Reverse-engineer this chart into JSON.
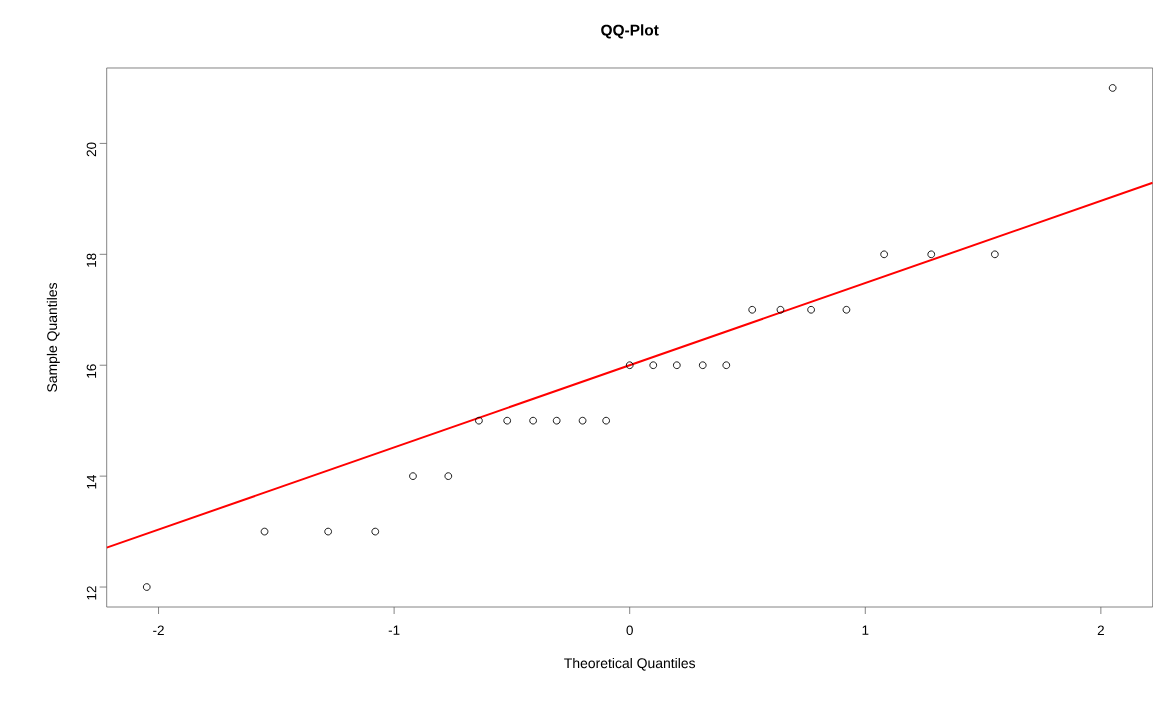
{
  "chart_data": {
    "type": "scatter",
    "title": "QQ-Plot",
    "xlabel": "Theoretical Quantiles",
    "ylabel": "Sample Quantiles",
    "x": [
      -2.05,
      -1.55,
      -1.28,
      -1.08,
      -0.92,
      -0.77,
      -0.64,
      -0.52,
      -0.41,
      -0.31,
      -0.2,
      -0.1,
      0,
      0.1,
      0.2,
      0.31,
      0.41,
      0.52,
      0.64,
      0.77,
      0.92,
      1.08,
      1.28,
      1.55,
      2.05
    ],
    "series": [
      {
        "marker": "circle",
        "color": "#000000",
        "values": [
          12,
          13,
          13,
          13,
          14,
          14,
          15,
          15,
          15,
          15,
          15,
          15,
          16,
          16,
          16,
          16,
          16,
          17,
          17,
          17,
          17,
          18,
          18,
          18,
          21
        ]
      },
      {
        "type": "line",
        "color": "#ff0000",
        "line_style": "solid",
        "x": [
          -2.22,
          2.22
        ],
        "values": [
          12.71,
          19.29
        ]
      }
    ],
    "xlim": [
      -2.22,
      2.22
    ],
    "ylim": [
      11.64,
      21.36
    ],
    "xticks": [
      -2,
      -1,
      0,
      1,
      2
    ],
    "yticks": [
      12,
      14,
      16,
      18,
      20
    ]
  }
}
